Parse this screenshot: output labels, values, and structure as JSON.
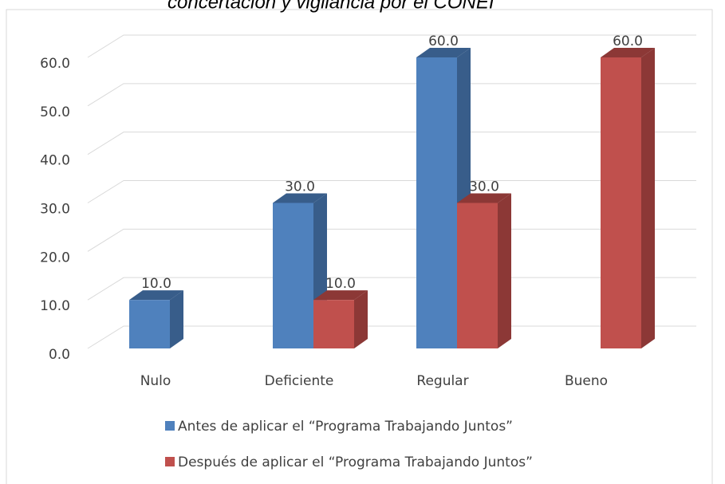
{
  "chart_data": {
    "type": "bar3d",
    "title": "concertación y vigilancia por el CONEI",
    "categories": [
      "Nulo",
      "Deficiente",
      "Regular",
      "Bueno"
    ],
    "series": [
      {
        "name": "Antes de aplicar el “Programa Trabajando Juntos”",
        "color": "#4f81bd",
        "side": "#385d8a",
        "values": [
          10,
          30,
          60,
          null
        ],
        "value_labels": [
          "10.0",
          "30.0",
          "60.0",
          null
        ]
      },
      {
        "name": "Después de aplicar el “Programa Trabajando Juntos”",
        "color": "#c0504d",
        "side": "#8c3836",
        "values": [
          null,
          10,
          30,
          60
        ],
        "value_labels": [
          null,
          "10.0",
          "30.0",
          "60.0"
        ]
      }
    ],
    "ylim": [
      0,
      60
    ],
    "yticks": [
      {
        "value": 0,
        "label": "0.0"
      },
      {
        "value": 10,
        "label": "10.0"
      },
      {
        "value": 20,
        "label": "20.0"
      },
      {
        "value": 30,
        "label": "30.0"
      },
      {
        "value": 40,
        "label": "40.0"
      },
      {
        "value": 50,
        "label": "50.0"
      },
      {
        "value": 60,
        "label": "60.0"
      }
    ],
    "grid": true,
    "legend": "bottom"
  }
}
